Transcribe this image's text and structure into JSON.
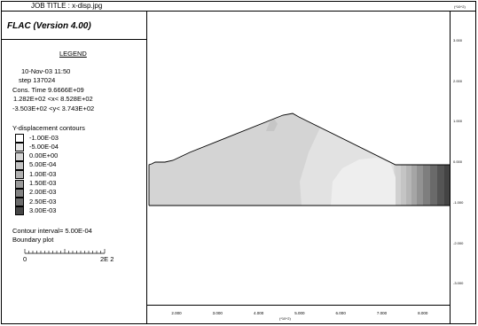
{
  "job_title": "JOB TITLE : x-disp.jpg",
  "program": "FLAC (Version 4.00)",
  "legend_title": "LEGEND",
  "info": {
    "date": "10-Nov-03  11:50",
    "step": "step   137024",
    "cons_time": "Cons. Time    9.6666E+09",
    "x_range": " 1.282E+02 <x< 8.528E+02",
    "y_range": "-3.503E+02 <y< 3.743E+02"
  },
  "contour_title": "Y-displacement contours",
  "contours": [
    {
      "label": "-1.00E-03",
      "color": "#ffffff"
    },
    {
      "label": "-5.00E-04",
      "color": "#e6e6e6"
    },
    {
      "label": "0.00E+00",
      "color": "#d4d4d4"
    },
    {
      "label": "5.00E-04",
      "color": "#c2c2c2"
    },
    {
      "label": "1.00E-03",
      "color": "#b0b0b0"
    },
    {
      "label": "1.50E-03",
      "color": "#9a9a9a"
    },
    {
      "label": "2.00E-03",
      "color": "#838383"
    },
    {
      "label": "2.50E-03",
      "color": "#6b6b6b"
    },
    {
      "label": "3.00E-03",
      "color": "#454545"
    }
  ],
  "contour_interval": "Contour interval=  5.00E-04",
  "boundary_plot": "Boundary plot",
  "scale": {
    "left": "0",
    "right": "2E  2"
  },
  "y_axis_unit": "(*10^2)",
  "y_ticks": [
    "3.000",
    "2.000",
    "1.000",
    "0.000",
    "-1.000",
    "-2.000",
    "-3.000"
  ],
  "x_ticks": [
    "2.000",
    "3.000",
    "4.000",
    "5.000",
    "6.000",
    "7.000",
    "8.000"
  ],
  "x_axis_unit": "(*10^2)"
}
